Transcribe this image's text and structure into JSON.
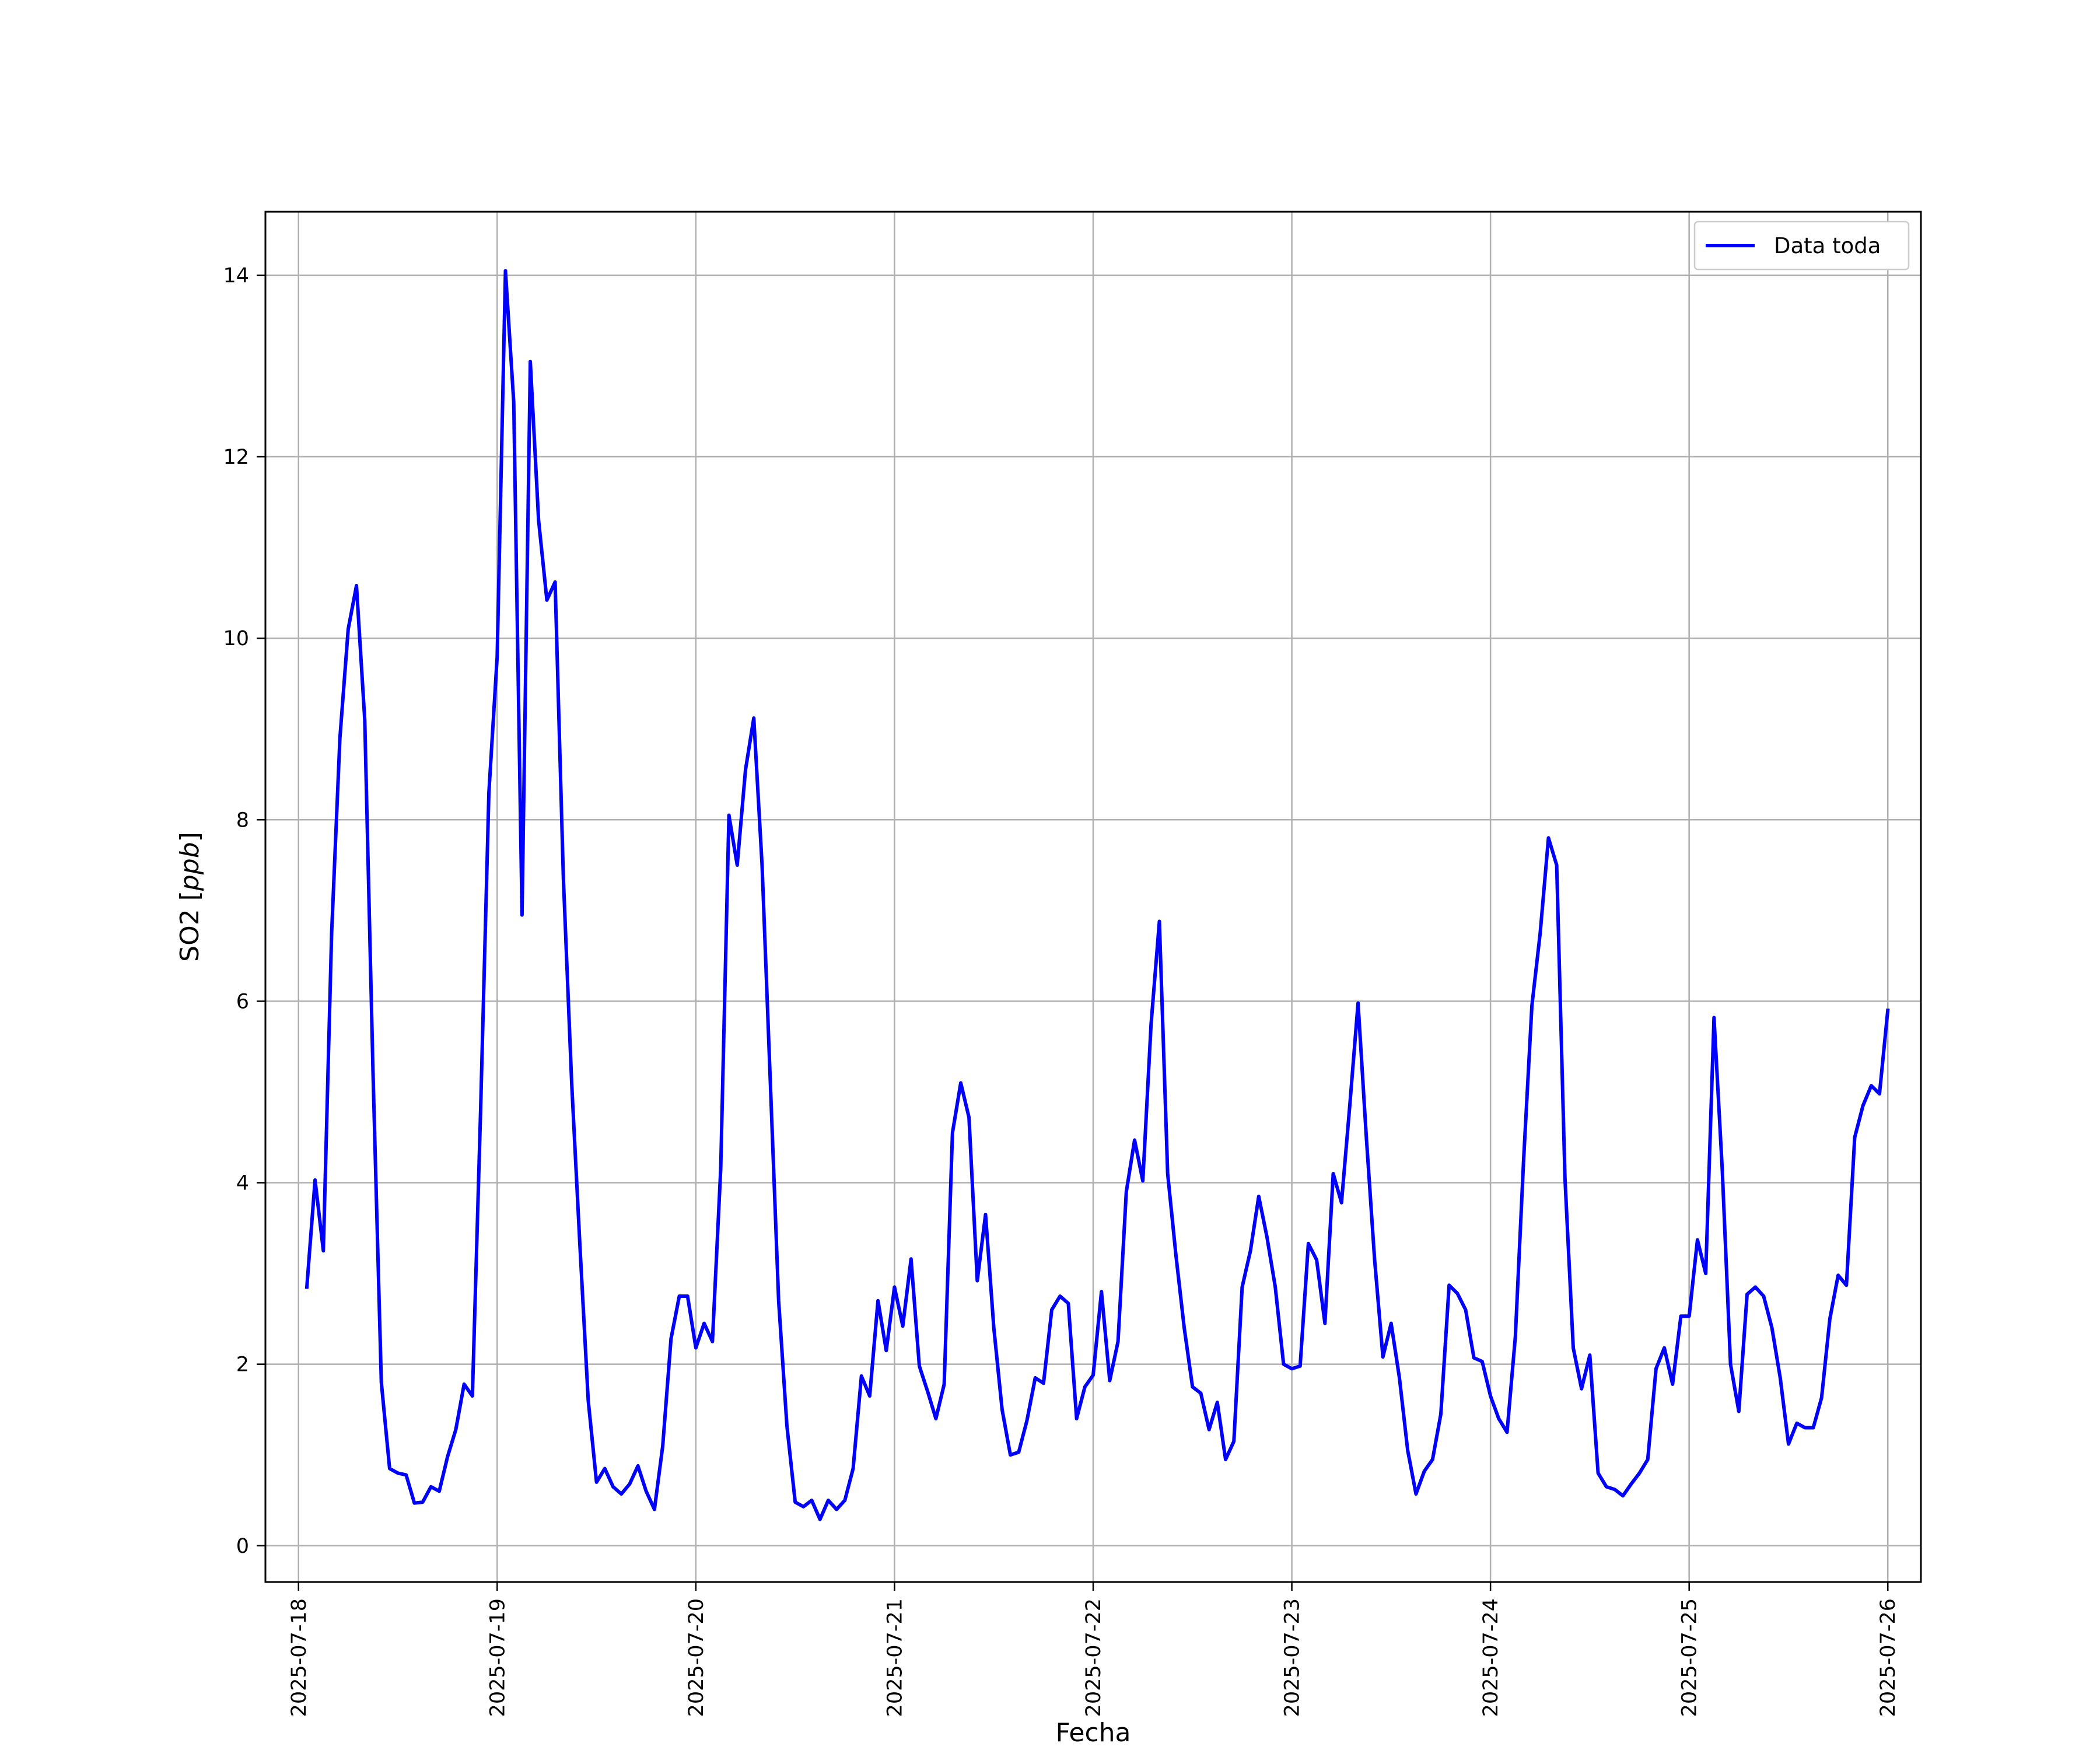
{
  "chart_data": {
    "type": "line",
    "xlabel": "Fecha",
    "ylabel": "SO2",
    "ylabel_unit": "ppb",
    "legend_position": "upper-right",
    "grid": true,
    "xlim": [
      "2025-07-17T20:00",
      "2025-07-26T04:00"
    ],
    "ylim": [
      -0.4,
      14.7
    ],
    "x_ticks": [
      "2025-07-18",
      "2025-07-19",
      "2025-07-20",
      "2025-07-21",
      "2025-07-22",
      "2025-07-23",
      "2025-07-24",
      "2025-07-25",
      "2025-07-26"
    ],
    "y_ticks": [
      "0",
      "2",
      "4",
      "6",
      "8",
      "10",
      "12",
      "14"
    ],
    "series": [
      {
        "name": "Data toda",
        "color": "#0000ff",
        "x_start": "2025-07-18T01:00",
        "x_step": "1h",
        "values": [
          2.85,
          4.03,
          3.25,
          6.75,
          8.9,
          10.1,
          10.58,
          9.1,
          5.2,
          1.8,
          0.85,
          0.8,
          0.78,
          0.47,
          0.48,
          0.65,
          0.6,
          0.98,
          1.28,
          1.78,
          1.65,
          4.8,
          8.3,
          9.8,
          14.05,
          12.6,
          6.95,
          13.05,
          11.3,
          10.42,
          10.62,
          7.35,
          5.1,
          3.3,
          1.6,
          0.7,
          0.85,
          0.65,
          0.57,
          0.68,
          0.88,
          0.6,
          0.4,
          1.1,
          2.28,
          2.75,
          2.75,
          2.18,
          2.45,
          2.25,
          4.15,
          8.05,
          7.5,
          8.55,
          9.12,
          7.5,
          5.1,
          2.7,
          1.32,
          0.48,
          0.43,
          0.5,
          0.29,
          0.5,
          0.4,
          0.5,
          0.85,
          1.87,
          1.65,
          2.7,
          2.15,
          2.85,
          2.42,
          3.16,
          1.98,
          1.7,
          1.4,
          1.78,
          4.55,
          5.1,
          4.72,
          2.92,
          3.65,
          2.4,
          1.5,
          1.0,
          1.03,
          1.38,
          1.85,
          1.79,
          2.6,
          2.75,
          2.67,
          1.4,
          1.75,
          1.88,
          2.8,
          1.82,
          2.25,
          3.9,
          4.47,
          4.02,
          5.75,
          6.88,
          4.1,
          3.2,
          2.4,
          1.75,
          1.68,
          1.28,
          1.58,
          0.95,
          1.15,
          2.85,
          3.25,
          3.85,
          3.4,
          2.85,
          2.0,
          1.95,
          1.98,
          3.33,
          3.15,
          2.45,
          4.1,
          3.78,
          4.85,
          5.98,
          4.5,
          3.15,
          2.08,
          2.45,
          1.85,
          1.05,
          0.57,
          0.82,
          0.95,
          1.45,
          2.87,
          2.78,
          2.6,
          2.07,
          2.03,
          1.65,
          1.4,
          1.25,
          2.3,
          4.25,
          5.95,
          6.75,
          7.8,
          7.5,
          4.05,
          2.18,
          1.73,
          2.1,
          0.8,
          0.65,
          0.62,
          0.55,
          0.68,
          0.8,
          0.95,
          1.95,
          2.18,
          1.78,
          2.53,
          2.53,
          3.37,
          3.0,
          5.82,
          4.15,
          2.0,
          1.48,
          2.77,
          2.85,
          2.75,
          2.4,
          1.85,
          1.12,
          1.35,
          1.3,
          1.3,
          1.63,
          2.5,
          2.98,
          2.87,
          4.5,
          4.85,
          5.07,
          4.98,
          5.9
        ]
      }
    ]
  }
}
